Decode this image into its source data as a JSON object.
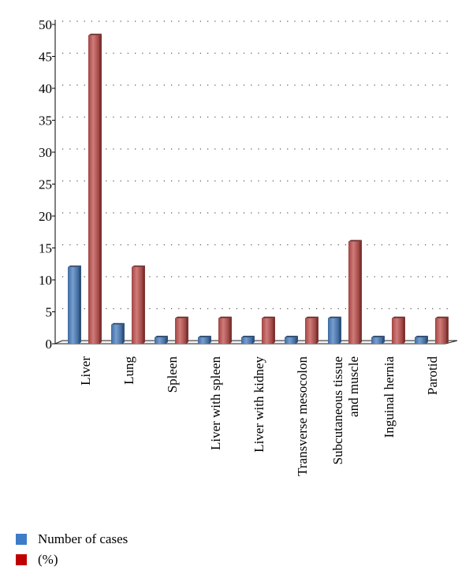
{
  "chart_data": {
    "type": "bar",
    "categories": [
      "Liver",
      "Lung",
      "Spleen",
      "Liver with spleen",
      "Liver with kidney",
      "Transverse mesocolon",
      "Subcutaneous tissue|and muscle",
      "Inguinal hernia",
      "Parotid"
    ],
    "series": [
      {
        "name": "Number of cases",
        "values": [
          12,
          3,
          1,
          1,
          1,
          1,
          4,
          1,
          1
        ],
        "color": "#4a7ebf"
      },
      {
        "name": "(%)",
        "values": [
          48.3,
          12,
          4,
          4,
          4,
          4,
          16,
          4,
          4
        ],
        "color": "#c0504d"
      }
    ],
    "yticks": [
      0,
      5,
      10,
      15,
      20,
      25,
      30,
      35,
      40,
      45,
      50
    ],
    "ylim": [
      0,
      50
    ],
    "grid": "dotted horizontal",
    "legend_position": "bottom-left",
    "title": "",
    "xlabel": "",
    "ylabel": ""
  },
  "legend": {
    "items": [
      {
        "label": "Number of cases",
        "color": "#3d7cc9"
      },
      {
        "label": "(%)",
        "color": "#c00000"
      }
    ]
  }
}
